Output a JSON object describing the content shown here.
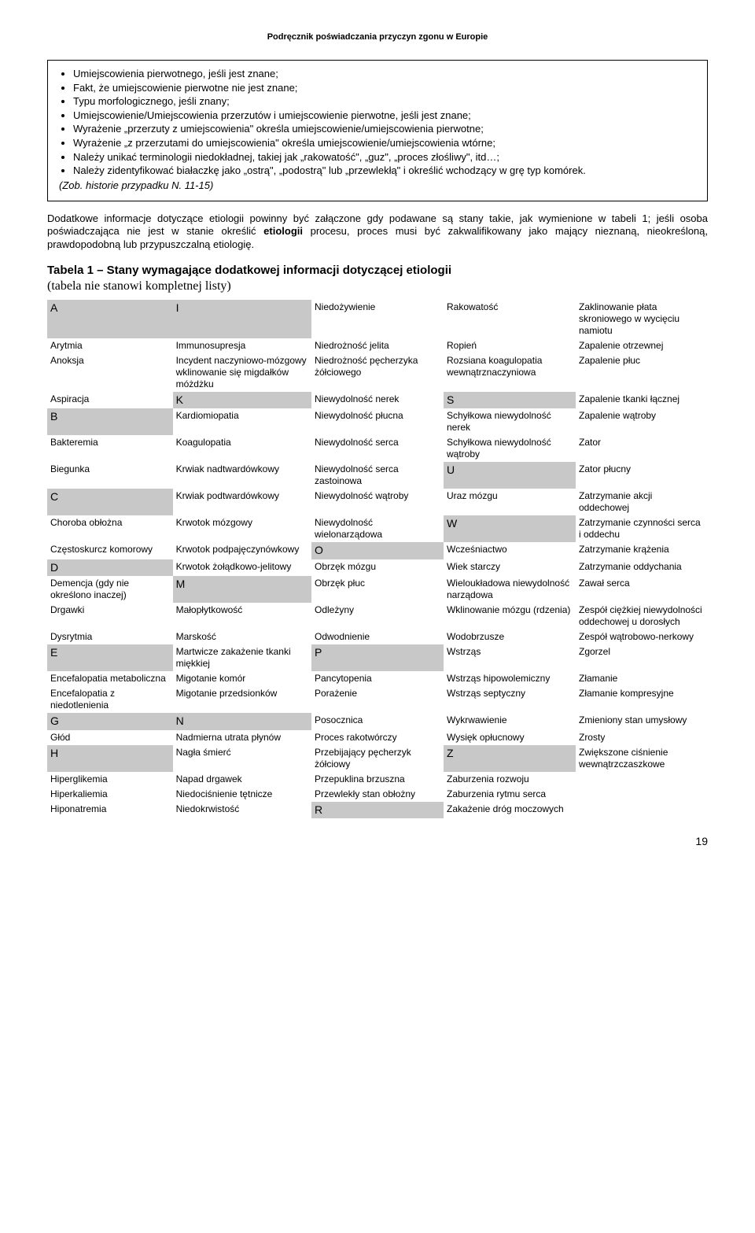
{
  "header": {
    "title": "Podręcznik poświadczania przyczyn zgonu w Europie"
  },
  "box": {
    "bullets": [
      "Umiejscowienia pierwotnego, jeśli jest znane;",
      "Fakt, że umiejscowienie pierwotne nie jest znane;",
      "Typu morfologicznego, jeśli znany;",
      "Umiejscowienie/Umiejscowienia przerzutów i umiejscowienie pierwotne, jeśli jest znane;",
      "Wyrażenie „przerzuty z umiejscowienia\" określa umiejscowienie/umiejscowienia pierwotne;",
      "Wyrażenie „z przerzutami do umiejscowienia\" określa umiejscowienie/umiejscowienia wtórne;",
      "Należy unikać terminologii niedokładnej, takiej jak „rakowatość\", „guz\", „proces złośliwy\", itd…;",
      "Należy zidentyfikować białaczkę jako „ostrą\", „podostrą\" lub „przewlekłą\" i określić wchodzący w grę typ komórek."
    ],
    "note_prefix": "(Zob. ",
    "note_italic": "historie przypadku N. 11-15",
    "note_suffix": ")"
  },
  "paragraph": {
    "text_before": "Dodatkowe informacje dotyczące etiologii powinny być załączone gdy podawane są stany takie, jak wymienione w tabeli 1; jeśli osoba poświadczająca nie jest w stanie określić ",
    "bold1": "etiologii",
    "text_after": " procesu, proces musi być zakwalifikowany jako mający nieznaną, nieokreśloną, prawdopodobną lub przypuszczalną etiologię."
  },
  "table_header": {
    "title": "Tabela 1 – Stany wymagające dodatkowej informacji dotyczącej etiologii",
    "subtitle": "(tabela nie stanowi kompletnej listy)"
  },
  "table": {
    "rows": [
      [
        {
          "t": "A",
          "g": true
        },
        {
          "t": "I",
          "g": true
        },
        {
          "t": "Niedożywienie"
        },
        {
          "t": "Rakowatość"
        },
        {
          "t": "Zaklinowanie płata skroniowego w wycięciu namiotu"
        }
      ],
      [
        {
          "t": "Arytmia"
        },
        {
          "t": "Immunosupresja"
        },
        {
          "t": "Niedrożność jelita"
        },
        {
          "t": "Ropień"
        },
        {
          "t": "Zapalenie otrzewnej"
        }
      ],
      [
        {
          "t": "Anoksja"
        },
        {
          "t": "Incydent naczyniowo-mózgowy wklinowanie się migdałków móżdżku"
        },
        {
          "t": "Niedrożność pęcherzyka żółciowego"
        },
        {
          "t": "Rozsiana koagulopatia wewnątrznaczyniowa"
        },
        {
          "t": "Zapalenie płuc"
        }
      ],
      [
        {
          "t": "Aspiracja"
        },
        {
          "t": "K",
          "g": true
        },
        {
          "t": "Niewydolność nerek"
        },
        {
          "t": "S",
          "g": true
        },
        {
          "t": "Zapalenie tkanki łącznej"
        }
      ],
      [
        {
          "t": "B",
          "g": true
        },
        {
          "t": "Kardiomiopatia"
        },
        {
          "t": "Niewydolność płucna"
        },
        {
          "t": "Schyłkowa niewydolność nerek"
        },
        {
          "t": "Zapalenie wątroby"
        }
      ],
      [
        {
          "t": "Bakteremia"
        },
        {
          "t": "Koagulopatia"
        },
        {
          "t": "Niewydolność serca"
        },
        {
          "t": "Schyłkowa niewydolność wątroby"
        },
        {
          "t": "Zator"
        }
      ],
      [
        {
          "t": "Biegunka"
        },
        {
          "t": "Krwiak nadtwardówkowy"
        },
        {
          "t": "Niewydolność serca zastoinowa"
        },
        {
          "t": "U",
          "g": true
        },
        {
          "t": "Zator płucny"
        }
      ],
      [
        {
          "t": "C",
          "g": true
        },
        {
          "t": "Krwiak podtwardówkowy"
        },
        {
          "t": "Niewydolność wątroby"
        },
        {
          "t": "Uraz mózgu"
        },
        {
          "t": "Zatrzymanie akcji oddechowej"
        }
      ],
      [
        {
          "t": "Choroba obłożna"
        },
        {
          "t": "Krwotok mózgowy"
        },
        {
          "t": "Niewydolność wielonarządowa"
        },
        {
          "t": "W",
          "g": true
        },
        {
          "t": "Zatrzymanie czynności serca i oddechu"
        }
      ],
      [
        {
          "t": "Częstoskurcz komorowy"
        },
        {
          "t": "Krwotok podpajęczynówkowy"
        },
        {
          "t": "O",
          "g": true
        },
        {
          "t": "Wcześniactwo"
        },
        {
          "t": "Zatrzymanie krążenia"
        }
      ],
      [
        {
          "t": "D",
          "g": true
        },
        {
          "t": "Krwotok żołądkowo-jelitowy"
        },
        {
          "t": "Obrzęk mózgu"
        },
        {
          "t": "Wiek starczy"
        },
        {
          "t": "Zatrzymanie oddychania"
        }
      ],
      [
        {
          "t": "Demencja (gdy nie określono inaczej)"
        },
        {
          "t": "M",
          "g": true
        },
        {
          "t": "Obrzęk płuc"
        },
        {
          "t": "Wieloukładowa niewydolność narządowa"
        },
        {
          "t": "Zawał serca"
        }
      ],
      [
        {
          "t": "Drgawki"
        },
        {
          "t": "Małopłytkowość"
        },
        {
          "t": "Odleżyny"
        },
        {
          "t": "Wklinowanie mózgu (rdzenia)"
        },
        {
          "t": "Zespół ciężkiej niewydolności oddechowej u dorosłych"
        }
      ],
      [
        {
          "t": "Dysrytmia"
        },
        {
          "t": "Marskość"
        },
        {
          "t": "Odwodnienie"
        },
        {
          "t": "Wodobrzusze"
        },
        {
          "t": "Zespół wątrobowo-nerkowy"
        }
      ],
      [
        {
          "t": "E",
          "g": true
        },
        {
          "t": "Martwicze zakażenie tkanki miękkiej"
        },
        {
          "t": "P",
          "g": true
        },
        {
          "t": "Wstrząs"
        },
        {
          "t": "Zgorzel"
        }
      ],
      [
        {
          "t": "Encefalopatia metaboliczna"
        },
        {
          "t": "Migotanie komór"
        },
        {
          "t": "Pancytopenia"
        },
        {
          "t": "Wstrząs hipowolemiczny"
        },
        {
          "t": "Złamanie"
        }
      ],
      [
        {
          "t": "Encefalopatia z niedotlenienia"
        },
        {
          "t": "Migotanie przedsionków"
        },
        {
          "t": "Porażenie"
        },
        {
          "t": "Wstrząs septyczny"
        },
        {
          "t": "Złamanie kompresyjne"
        }
      ],
      [
        {
          "t": "G",
          "g": true
        },
        {
          "t": "N",
          "g": true
        },
        {
          "t": "Posocznica"
        },
        {
          "t": "Wykrwawienie"
        },
        {
          "t": "Zmieniony stan umysłowy"
        }
      ],
      [
        {
          "t": "Głód"
        },
        {
          "t": "Nadmierna utrata płynów"
        },
        {
          "t": "Proces rakotwórczy"
        },
        {
          "t": "Wysięk opłucnowy"
        },
        {
          "t": "Zrosty"
        }
      ],
      [
        {
          "t": "H",
          "g": true
        },
        {
          "t": "Nagła śmierć"
        },
        {
          "t": "Przebijający pęcherzyk żółciowy"
        },
        {
          "t": "Z",
          "g": true
        },
        {
          "t": "Zwiększone ciśnienie wewnątrzczaszkowe"
        }
      ],
      [
        {
          "t": "Hiperglikemia"
        },
        {
          "t": "Napad drgawek"
        },
        {
          "t": "Przepuklina brzuszna"
        },
        {
          "t": "Zaburzenia rozwoju"
        },
        {
          "t": ""
        }
      ],
      [
        {
          "t": "Hiperkaliemia"
        },
        {
          "t": "Niedociśnienie tętnicze"
        },
        {
          "t": "Przewlekły stan obłożny"
        },
        {
          "t": "Zaburzenia rytmu serca"
        },
        {
          "t": ""
        }
      ],
      [
        {
          "t": "Hiponatremia"
        },
        {
          "t": "Niedokrwistość"
        },
        {
          "t": "R",
          "g": true
        },
        {
          "t": "Zakażenie dróg moczowych"
        },
        {
          "t": ""
        }
      ]
    ]
  },
  "page_number": "19"
}
